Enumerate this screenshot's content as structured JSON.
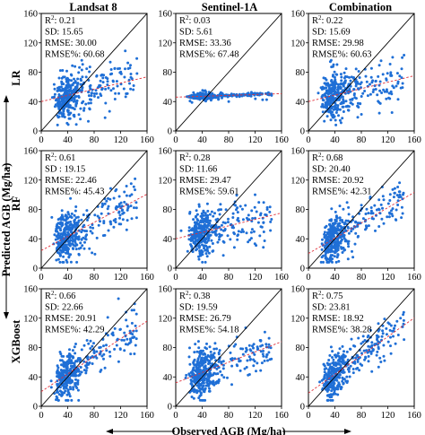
{
  "columns": [
    "Landsat 8",
    "Sentinel-1A",
    "Combination"
  ],
  "rows": [
    "LR",
    "RF",
    "XGBoost"
  ],
  "axis_labels": {
    "x": "Observed AGB (Mg/ha)",
    "y": "Predicted AGB (Mg/ha)"
  },
  "colors": {
    "points": "#1f6fd6",
    "fit_line": "#e0303a",
    "one_to_one": "#000000"
  },
  "chart_data": [
    {
      "type": "scatter",
      "row": "LR",
      "column": "Landsat 8",
      "xlim": [
        0,
        160
      ],
      "ylim": [
        0,
        160
      ],
      "ticks": [
        0,
        40,
        80,
        120,
        160
      ],
      "fit": {
        "intercept": 40,
        "slope": 0.21
      },
      "n": 400,
      "mean_obs": 48,
      "stats": {
        "r2_label": "R",
        "r2_value": ": 0.21",
        "sd": "SD: 15.65",
        "rmse": "RMSE: 30.00",
        "rmse_pct": "RMSE%: 60.68"
      }
    },
    {
      "type": "scatter",
      "row": "LR",
      "column": "Sentinel-1A",
      "xlim": [
        0,
        160
      ],
      "ylim": [
        0,
        160
      ],
      "ticks": [
        0,
        40,
        80,
        120,
        160
      ],
      "fit": {
        "intercept": 46,
        "slope": 0.03
      },
      "n": 400,
      "mean_obs": 48,
      "stats": {
        "r2_label": "R",
        "r2_value": ": 0.03",
        "sd": "SD: 5.61",
        "rmse": "RMSE: 33.36",
        "rmse_pct": "RMSE%: 67.48"
      }
    },
    {
      "type": "scatter",
      "row": "LR",
      "column": "Combination",
      "xlim": [
        0,
        160
      ],
      "ylim": [
        0,
        160
      ],
      "ticks": [
        0,
        40,
        80,
        120,
        160
      ],
      "fit": {
        "intercept": 40,
        "slope": 0.22
      },
      "n": 400,
      "mean_obs": 48,
      "stats": {
        "r2_label": "R",
        "r2_value": ": 0.22",
        "sd": "SD: 15.69",
        "rmse": "RMSE: 29.98",
        "rmse_pct": "RMSE%: 60.63"
      }
    },
    {
      "type": "scatter",
      "row": "RF",
      "column": "Landsat 8",
      "xlim": [
        0,
        160
      ],
      "ylim": [
        0,
        160
      ],
      "ticks": [
        0,
        40,
        80,
        120,
        160
      ],
      "fit": {
        "intercept": 24,
        "slope": 0.48
      },
      "n": 400,
      "mean_obs": 48,
      "stats": {
        "r2_label": "R",
        "r2_value": ": 0.61",
        "sd": "SD : 19.15",
        "rmse": "RMSE: 22.46",
        "rmse_pct": "RMSE%: 45.43"
      }
    },
    {
      "type": "scatter",
      "row": "RF",
      "column": "Sentinel-1A",
      "xlim": [
        0,
        160
      ],
      "ylim": [
        0,
        160
      ],
      "ticks": [
        0,
        40,
        80,
        120,
        160
      ],
      "fit": {
        "intercept": 40,
        "slope": 0.22
      },
      "n": 400,
      "mean_obs": 48,
      "stats": {
        "r2_label": "R",
        "r2_value": ": 0.28",
        "sd": "SD: 11.66",
        "rmse": "RMSE: 29.47",
        "rmse_pct": "RMSE%: 59.61"
      }
    },
    {
      "type": "scatter",
      "row": "RF",
      "column": "Combination",
      "xlim": [
        0,
        160
      ],
      "ylim": [
        0,
        160
      ],
      "ticks": [
        0,
        40,
        80,
        120,
        160
      ],
      "fit": {
        "intercept": 20,
        "slope": 0.52
      },
      "n": 400,
      "mean_obs": 48,
      "stats": {
        "r2_label": "R",
        "r2_value": ": 0.68",
        "sd": "SD: 20.40",
        "rmse": "RMSE: 20.92",
        "rmse_pct": "RMSE%: 42.31"
      }
    },
    {
      "type": "scatter",
      "row": "XGBoost",
      "column": "Landsat 8",
      "xlim": [
        0,
        160
      ],
      "ylim": [
        0,
        160
      ],
      "ticks": [
        0,
        40,
        80,
        120,
        160
      ],
      "fit": {
        "intercept": 20,
        "slope": 0.6
      },
      "n": 400,
      "mean_obs": 48,
      "stats": {
        "r2_label": "R",
        "r2_value": ": 0.66",
        "sd": "SD: 22.66",
        "rmse": "RMSE: 20.91",
        "rmse_pct": "RMSE%: 42.29"
      }
    },
    {
      "type": "scatter",
      "row": "XGBoost",
      "column": "Sentinel-1A",
      "xlim": [
        0,
        160
      ],
      "ylim": [
        0,
        160
      ],
      "ticks": [
        0,
        40,
        80,
        120,
        160
      ],
      "fit": {
        "intercept": 32,
        "slope": 0.35
      },
      "n": 400,
      "mean_obs": 48,
      "stats": {
        "r2_label": "R",
        "r2_value": ": 0.38",
        "sd": "SD: 19.59",
        "rmse": "RMSE: 26.79",
        "rmse_pct": "RMSE%: 54.18"
      }
    },
    {
      "type": "scatter",
      "row": "XGBoost",
      "column": "Combination",
      "xlim": [
        0,
        160
      ],
      "ylim": [
        0,
        160
      ],
      "ticks": [
        0,
        40,
        80,
        120,
        160
      ],
      "fit": {
        "intercept": 18,
        "slope": 0.64
      },
      "n": 400,
      "mean_obs": 48,
      "stats": {
        "r2_label": "R",
        "r2_value": ": 0.75",
        "sd": "SD: 23.81",
        "rmse": "RMSE: 18.92",
        "rmse_pct": "RMSE%: 38.28"
      }
    }
  ]
}
